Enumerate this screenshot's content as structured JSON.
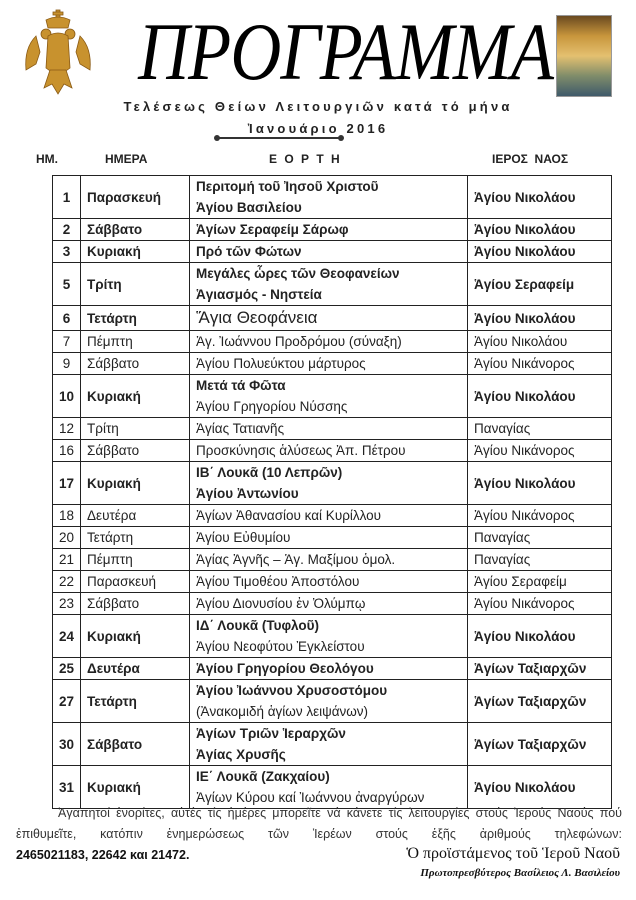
{
  "header": {
    "title": "ΠΡΟΓΡΑΜΜΑ",
    "subtitle": "Τελέσεως Θείων Λειτουργιῶν κατά τό μήνα",
    "month": "Ἰανουάριο 2016"
  },
  "columns": {
    "day": "ΗΜ.",
    "weekday": "ΗΜΕΡΑ",
    "feast": "Ε Ο Ρ Τ Η",
    "church": "ΙΕΡΟΣ  ΝΑΟΣ"
  },
  "colors": {
    "text": "#222222",
    "emblem": "#c8922e"
  },
  "rows": [
    {
      "day": "1",
      "weekday": "Παρασκευή",
      "feast": [
        {
          "text": "Περιτομή τοῦ Ἰησοῦ Χριστοῦ",
          "bold": true
        },
        {
          "text": "Ἁγίου Βασιλείου",
          "bold": true
        }
      ],
      "church": "Ἁγίου Νικολάου",
      "bold": true
    },
    {
      "day": "2",
      "weekday": "Σάββατο",
      "feast": [
        {
          "text": "Ἁγίων Σεραφείμ Σάρωφ",
          "bold": true
        }
      ],
      "church": "Ἁγίου Νικολάου",
      "bold": true
    },
    {
      "day": "3",
      "weekday": "Κυριακή",
      "feast": [
        {
          "text": "Πρό τῶν Φώτων",
          "bold": true
        }
      ],
      "church": "Ἁγίου Νικολάου",
      "bold": true
    },
    {
      "day": "5",
      "weekday": "Τρίτη",
      "feast": [
        {
          "text": "Μεγάλες ὧρες τῶν Θεοφανείων",
          "bold": true
        },
        {
          "text": "Ἁγιασμός - Νηστεία",
          "bold": true
        }
      ],
      "church": "Ἁγίου Σεραφείμ",
      "bold": true
    },
    {
      "day": "6",
      "weekday": "Τετάρτη",
      "feast": [
        {
          "text": "Ἅγια Θεοφάνεια",
          "bold": false,
          "big": true
        }
      ],
      "church": "Ἁγίου Νικολάου",
      "bold": true
    },
    {
      "day": "7",
      "weekday": "Πέμπτη",
      "feast": [
        {
          "text": "Ἁγ. Ἰωάννου Προδρόμου (σύναξη)",
          "bold": false
        }
      ],
      "church": "Ἁγίου Νικολάου",
      "bold": false
    },
    {
      "day": "9",
      "weekday": "Σάββατο",
      "feast": [
        {
          "text": "Ἁγίου Πολυεύκτου μάρτυρος",
          "bold": false
        }
      ],
      "church": "Ἁγίου Νικάνορος",
      "bold": false
    },
    {
      "day": "10",
      "weekday": "Κυριακή",
      "feast": [
        {
          "text": "Μετά τά Φῶτα",
          "bold": true
        },
        {
          "text": "Ἁγίου Γρηγορίου Νύσσης",
          "bold": false
        }
      ],
      "church": "Ἁγίου Νικολάου",
      "bold": true
    },
    {
      "day": "12",
      "weekday": "Τρίτη",
      "feast": [
        {
          "text": "Ἁγίας Τατιανῆς",
          "bold": false
        }
      ],
      "church": "Παναγίας",
      "bold": false
    },
    {
      "day": "16",
      "weekday": "Σάββατο",
      "feast": [
        {
          "text": "Προσκύνησις ἁλύσεως Ἀπ. Πέτρου",
          "bold": false
        }
      ],
      "church": "Ἁγίου Νικάνορος",
      "bold": false
    },
    {
      "day": "17",
      "weekday": "Κυριακή",
      "feast": [
        {
          "text": "ΙΒ΄ Λουκᾶ (10 Λεπρῶν)",
          "bold": true
        },
        {
          "text": "Ἁγίου Ἀντωνίου",
          "bold": true
        }
      ],
      "church": "Ἁγίου Νικολάου",
      "bold": true
    },
    {
      "day": "18",
      "weekday": "Δευτέρα",
      "feast": [
        {
          "text": "Ἁγίων Ἀθανασίου καί Κυρίλλου",
          "bold": false
        }
      ],
      "church": "Ἁγίου Νικάνορος",
      "bold": false
    },
    {
      "day": "20",
      "weekday": "Τετάρτη",
      "feast": [
        {
          "text": "Ἁγίου Εὐθυμίου",
          "bold": false
        }
      ],
      "church": "Παναγίας",
      "bold": false
    },
    {
      "day": "21",
      "weekday": "Πέμπτη",
      "feast": [
        {
          "text": "Ἁγίας Ἁγνῆς – Ἁγ. Μαξίμου ὁμολ.",
          "bold": false
        }
      ],
      "church": "Παναγίας",
      "bold": false
    },
    {
      "day": "22",
      "weekday": "Παρασκευή",
      "feast": [
        {
          "text": "Ἁγίου Τιμοθέου Ἀποστόλου",
          "bold": false
        }
      ],
      "church": "Ἁγίου Σεραφείμ",
      "bold": false
    },
    {
      "day": "23",
      "weekday": "Σάββατο",
      "feast": [
        {
          "text": "Ἁγίου Διονυσίου ἐν  Ὀλύμπῳ",
          "bold": false
        }
      ],
      "church": "Ἁγίου Νικάνορος",
      "bold": false
    },
    {
      "day": "24",
      "weekday": "Κυριακή",
      "feast": [
        {
          "text": "ΙΔ΄ Λουκᾶ (Τυφλοῦ)",
          "bold": true
        },
        {
          "text": "Ἁγίου Νεοφύτου Ἐγκλείστου",
          "bold": false
        }
      ],
      "church": "Ἁγίου Νικολάου",
      "bold": true
    },
    {
      "day": "25",
      "weekday": "Δευτέρα",
      "feast": [
        {
          "text": "Ἁγίου Γρηγορίου Θεολόγου",
          "bold": true
        }
      ],
      "church": "Ἁγίων Ταξιαρχῶν",
      "bold": true
    },
    {
      "day": "27",
      "weekday": "Τετάρτη",
      "feast": [
        {
          "text": "Ἁγίου Ἰωάννου Χρυσοστόμου",
          "bold": true
        },
        {
          "text": "(Ἀνακομιδή  ἁγίων λειψάνων)",
          "bold": false
        }
      ],
      "church": "Ἁγίων Ταξιαρχῶν",
      "bold": true
    },
    {
      "day": "30",
      "weekday": "Σάββατο",
      "feast": [
        {
          "text": "Ἁγίων Τριῶν Ἱεραρχῶν",
          "bold": true
        },
        {
          "text": "Ἁγίας Χρυσῆς",
          "bold": true
        }
      ],
      "church": "Ἁγίων Ταξιαρχῶν",
      "bold": true
    },
    {
      "day": "31",
      "weekday": "Κυριακή",
      "feast": [
        {
          "text": "ΙΕ΄ Λουκᾶ (Ζακχαίου)",
          "bold": true
        },
        {
          "text": "Ἁγίων  Κύρου καί Ἰωάννου ἀναργύρων",
          "bold": false
        }
      ],
      "church": "Ἁγίου Νικολάου",
      "bold": true
    }
  ],
  "footer": {
    "note": "Ἀγαπητοί ἐνορίτες, αὐτές τίς ἡμέρες μπορεῖτε νά κάνετε τίς λειτουργίες στούς Ἱερούς Ναούς πού ἐπιθυμεῖτε, κατόπιν ἐνημερώσεως τῶν Ἱερέων στούς ἑξῆς ἀριθμούς τηλεφώνων:",
    "phones": "2465021183, 22642 και 21472.",
    "signature_title": "Ὁ προϊστάμενος τοῦ Ἱεροῦ Ναοῦ",
    "signature_name": "Πρωτοπρεσβύτερος Βασίλειος Λ. Βασιλείου"
  }
}
